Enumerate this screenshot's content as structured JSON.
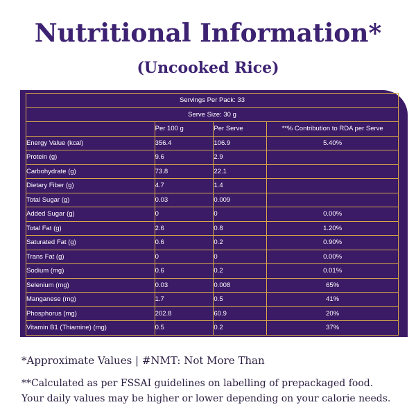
{
  "header": {
    "title": "Nutritional Information*",
    "subtitle": "(Uncooked Rice)"
  },
  "table": {
    "servings_per_pack": "Servings Per Pack: 33",
    "serve_size": "Serve Size: 30 g",
    "columns": [
      "",
      "Per 100 g",
      "Per Serve",
      "**% Contribution to RDA per Serve"
    ],
    "rows": [
      [
        "Energy Value (kcal)",
        "356.4",
        "106.9",
        "5.40%"
      ],
      [
        "Protein (g)",
        "9.6",
        "2.9",
        ""
      ],
      [
        "Carbohydrate (g)",
        "73.8",
        "22.1",
        ""
      ],
      [
        "Dietary Fiber (g)",
        "4.7",
        "1.4",
        ""
      ],
      [
        "Total Sugar (g)",
        "0.03",
        "0.009",
        ""
      ],
      [
        "Added Sugar (g)",
        "0",
        "0",
        "0.00%"
      ],
      [
        "Total Fat (g)",
        "2.6",
        "0.8",
        "1.20%"
      ],
      [
        "Saturated Fat (g)",
        "0.6",
        "0.2",
        "0.90%"
      ],
      [
        "Trans Fat (g)",
        "0",
        "0",
        "0.00%"
      ],
      [
        "Sodium (mg)",
        "0.6",
        "0.2",
        "0.01%"
      ],
      [
        "Selenium (mg)",
        "0.03",
        "0.008",
        "65%"
      ],
      [
        "Manganese (mg)",
        "1.7",
        "0.5",
        "41%"
      ],
      [
        "Phosphorus (mg)",
        "202.8",
        "60.9",
        "20%"
      ],
      [
        "Vitamin B1 (Thiamine) (mg)",
        "0.5",
        "0.2",
        "37%"
      ]
    ]
  },
  "footnotes": {
    "approx": "*Approximate Values | #NMT: Not More Than",
    "line1": "**Calculated as per FSSAI guidelines on labelling of prepackaged food.",
    "line2": "Your daily values may be higher or lower depending on your calorie needs."
  },
  "colors": {
    "panel": "#3b1a66",
    "border": "#d9a948",
    "title": "#3d2272"
  }
}
